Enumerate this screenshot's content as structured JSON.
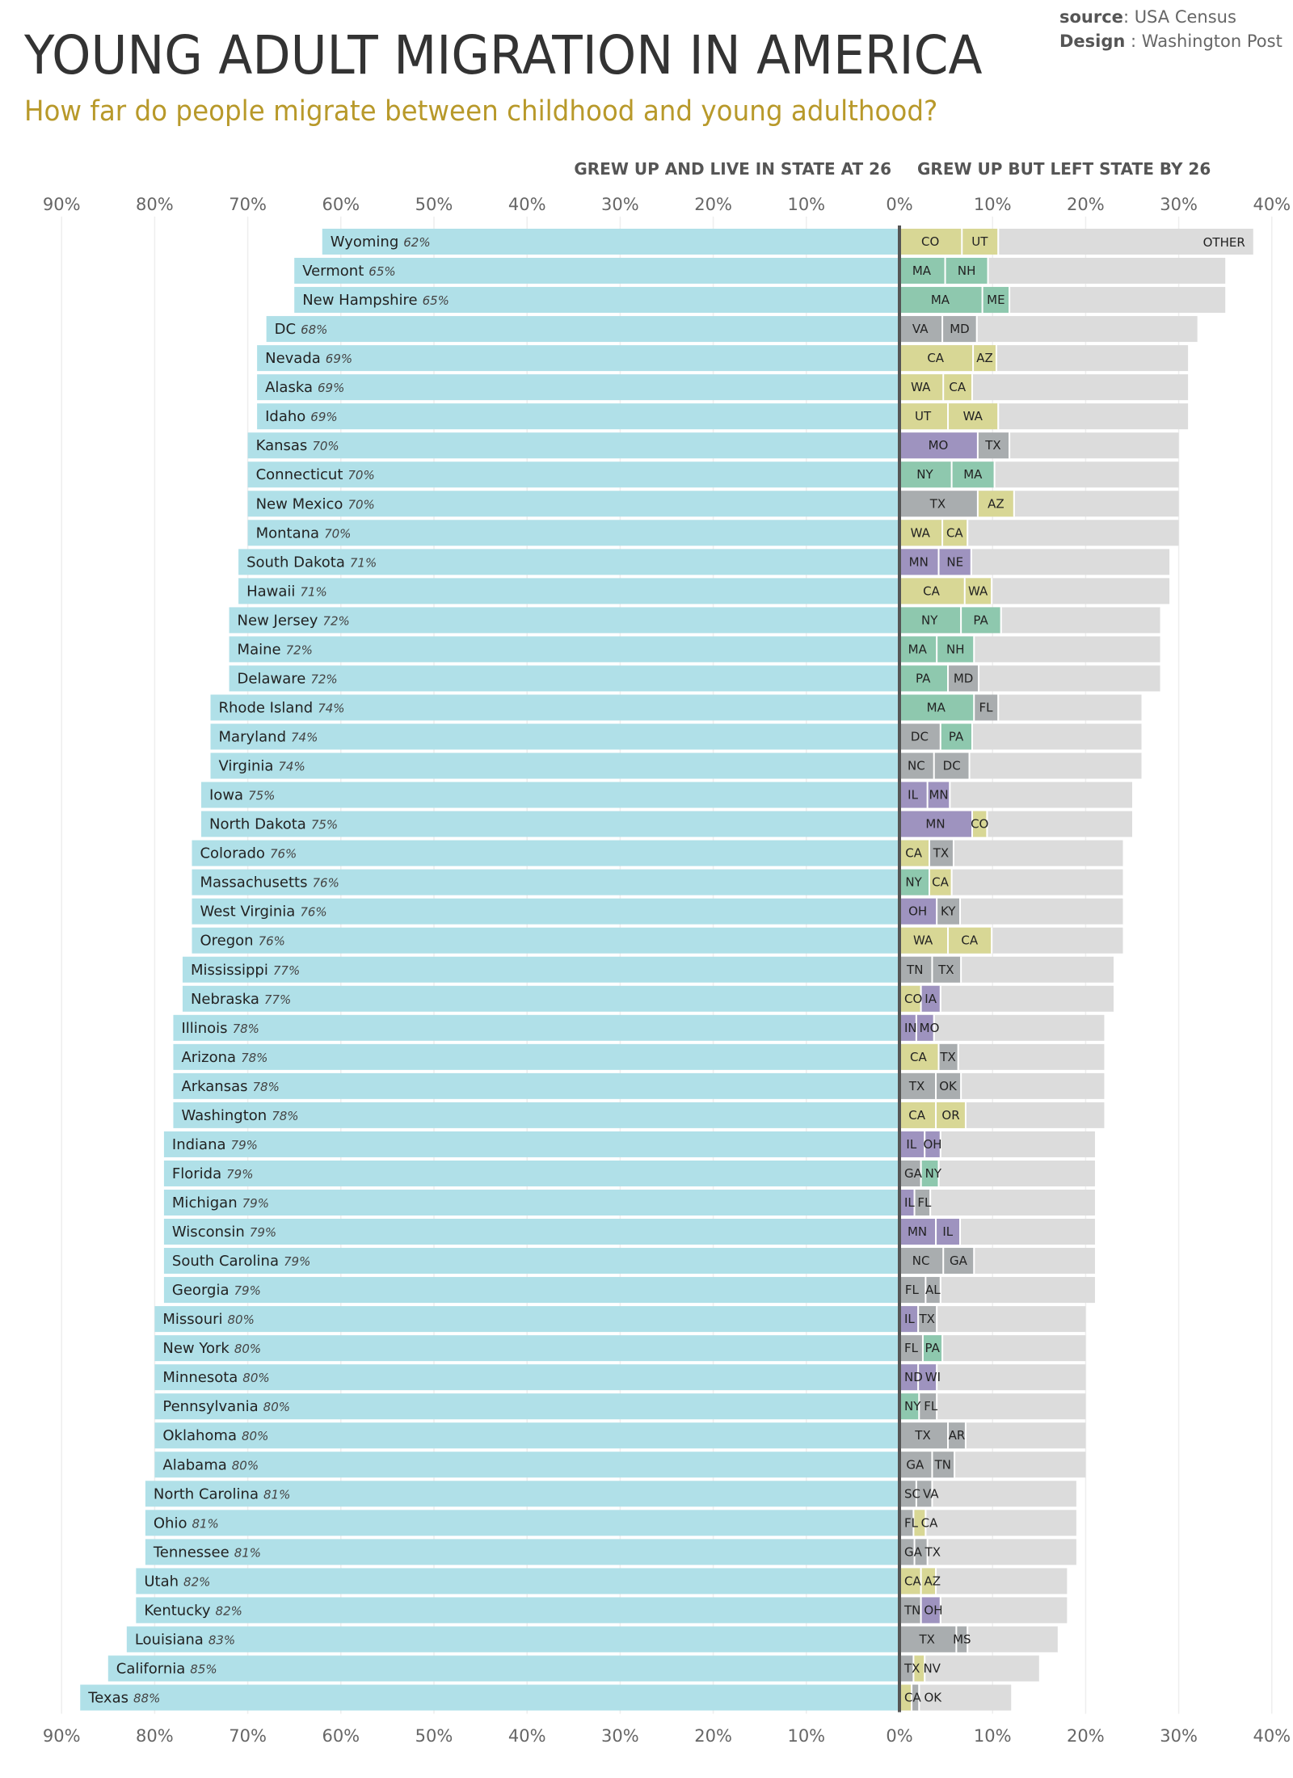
{
  "header": {
    "title": "YOUNG ADULT MIGRATION IN AMERICA",
    "subtitle": "How far do people migrate between childhood and young adulthood?",
    "source_label": "source",
    "source_value": ": USA Census",
    "design_label": "Design",
    "design_value": " : Washington Post"
  },
  "chart_data": {
    "type": "bar",
    "orientation": "horizontal-diverging-stacked",
    "left_header": "GREW UP AND LIVE IN STATE AT 26",
    "right_header": "GREW UP BUT LEFT STATE BY 26",
    "left_ticks": [
      "90%",
      "80%",
      "70%",
      "60%",
      "50%",
      "40%",
      "30%",
      "20%",
      "10%",
      "0%"
    ],
    "right_ticks": [
      "10%",
      "20%",
      "30%",
      "40%"
    ],
    "xlim_left": [
      90,
      0
    ],
    "xlim_right": [
      0,
      40
    ],
    "grid": true,
    "other_label": "OTHER",
    "colors": {
      "stayed": "#b0e0e8",
      "West": "#d8d795",
      "Northeast": "#8ec8ae",
      "Midwest": "#9e93bf",
      "South": "#a9adaf",
      "other": "#dcdcdc",
      "subtitle": "#b8992a"
    },
    "rows": [
      {
        "state": "Wyoming",
        "stayed": 62,
        "dest": [
          [
            "CO",
            6.8,
            "West"
          ],
          [
            "UT",
            3.9,
            "West"
          ]
        ]
      },
      {
        "state": "Vermont",
        "stayed": 65,
        "dest": [
          [
            "MA",
            5.0,
            "Northeast"
          ],
          [
            "NH",
            4.6,
            "Northeast"
          ]
        ]
      },
      {
        "state": "New Hampshire",
        "stayed": 65,
        "dest": [
          [
            "MA",
            9.0,
            "Northeast"
          ],
          [
            "ME",
            2.9,
            "Northeast"
          ]
        ]
      },
      {
        "state": "DC",
        "stayed": 68,
        "dest": [
          [
            "VA",
            4.7,
            "South"
          ],
          [
            "MD",
            3.7,
            "South"
          ]
        ]
      },
      {
        "state": "Nevada",
        "stayed": 69,
        "dest": [
          [
            "CA",
            8.0,
            "West"
          ],
          [
            "AZ",
            2.5,
            "West"
          ]
        ]
      },
      {
        "state": "Alaska",
        "stayed": 69,
        "dest": [
          [
            "WA",
            4.8,
            "West"
          ],
          [
            "CA",
            3.1,
            "West"
          ]
        ]
      },
      {
        "state": "Idaho",
        "stayed": 69,
        "dest": [
          [
            "UT",
            5.3,
            "West"
          ],
          [
            "WA",
            5.4,
            "West"
          ]
        ]
      },
      {
        "state": "Kansas",
        "stayed": 70,
        "dest": [
          [
            "MO",
            8.5,
            "Midwest"
          ],
          [
            "TX",
            3.4,
            "South"
          ]
        ]
      },
      {
        "state": "Connecticut",
        "stayed": 70,
        "dest": [
          [
            "NY",
            5.7,
            "Northeast"
          ],
          [
            "MA",
            4.6,
            "Northeast"
          ]
        ]
      },
      {
        "state": "New Mexico",
        "stayed": 70,
        "dest": [
          [
            "TX",
            8.5,
            "South"
          ],
          [
            "AZ",
            3.9,
            "West"
          ]
        ]
      },
      {
        "state": "Montana",
        "stayed": 70,
        "dest": [
          [
            "WA",
            4.7,
            "West"
          ],
          [
            "CA",
            2.7,
            "West"
          ]
        ]
      },
      {
        "state": "South Dakota",
        "stayed": 71,
        "dest": [
          [
            "MN",
            4.3,
            "Midwest"
          ],
          [
            "NE",
            3.5,
            "Midwest"
          ]
        ]
      },
      {
        "state": "Hawaii",
        "stayed": 71,
        "dest": [
          [
            "CA",
            7.1,
            "West"
          ],
          [
            "WA",
            2.9,
            "West"
          ]
        ]
      },
      {
        "state": "New Jersey",
        "stayed": 72,
        "dest": [
          [
            "NY",
            6.7,
            "Northeast"
          ],
          [
            "PA",
            4.3,
            "Northeast"
          ]
        ]
      },
      {
        "state": "Maine",
        "stayed": 72,
        "dest": [
          [
            "MA",
            4.1,
            "Northeast"
          ],
          [
            "NH",
            4.0,
            "Northeast"
          ]
        ]
      },
      {
        "state": "Delaware",
        "stayed": 72,
        "dest": [
          [
            "PA",
            5.3,
            "Northeast"
          ],
          [
            "MD",
            3.3,
            "South"
          ]
        ]
      },
      {
        "state": "Rhode Island",
        "stayed": 74,
        "dest": [
          [
            "MA",
            8.1,
            "Northeast"
          ],
          [
            "FL",
            2.6,
            "South"
          ]
        ]
      },
      {
        "state": "Maryland",
        "stayed": 74,
        "dest": [
          [
            "DC",
            4.5,
            "South"
          ],
          [
            "PA",
            3.4,
            "Northeast"
          ]
        ]
      },
      {
        "state": "Virginia",
        "stayed": 74,
        "dest": [
          [
            "NC",
            3.8,
            "South"
          ],
          [
            "DC",
            3.8,
            "South"
          ]
        ]
      },
      {
        "state": "Iowa",
        "stayed": 75,
        "dest": [
          [
            "IL",
            3.1,
            "Midwest"
          ],
          [
            "MN",
            2.4,
            "Midwest"
          ]
        ]
      },
      {
        "state": "North Dakota",
        "stayed": 75,
        "dest": [
          [
            "MN",
            7.9,
            "Midwest"
          ],
          [
            "CO",
            1.6,
            "West"
          ]
        ]
      },
      {
        "state": "Colorado",
        "stayed": 76,
        "dest": [
          [
            "CA",
            3.3,
            "West"
          ],
          [
            "TX",
            2.6,
            "South"
          ]
        ]
      },
      {
        "state": "Massachusetts",
        "stayed": 76,
        "dest": [
          [
            "NY",
            3.3,
            "Northeast"
          ],
          [
            "CA",
            2.4,
            "West"
          ]
        ]
      },
      {
        "state": "West Virginia",
        "stayed": 76,
        "dest": [
          [
            "OH",
            4.1,
            "Midwest"
          ],
          [
            "KY",
            2.5,
            "South"
          ]
        ]
      },
      {
        "state": "Oregon",
        "stayed": 76,
        "dest": [
          [
            "WA",
            5.3,
            "West"
          ],
          [
            "CA",
            4.7,
            "West"
          ]
        ]
      },
      {
        "state": "Mississippi",
        "stayed": 77,
        "dest": [
          [
            "TN",
            3.6,
            "South"
          ],
          [
            "TX",
            3.1,
            "South"
          ]
        ]
      },
      {
        "state": "Nebraska",
        "stayed": 77,
        "dest": [
          [
            "CO",
            2.4,
            "West"
          ],
          [
            "IA",
            2.1,
            "Midwest"
          ]
        ]
      },
      {
        "state": "Illinois",
        "stayed": 78,
        "dest": [
          [
            "IN",
            1.9,
            "Midwest"
          ],
          [
            "MO",
            1.9,
            "Midwest"
          ]
        ]
      },
      {
        "state": "Arizona",
        "stayed": 78,
        "dest": [
          [
            "CA",
            4.3,
            "West"
          ],
          [
            "TX",
            2.1,
            "South"
          ]
        ]
      },
      {
        "state": "Arkansas",
        "stayed": 78,
        "dest": [
          [
            "TX",
            4.0,
            "South"
          ],
          [
            "OK",
            2.7,
            "South"
          ]
        ]
      },
      {
        "state": "Washington",
        "stayed": 78,
        "dest": [
          [
            "CA",
            4.0,
            "West"
          ],
          [
            "OR",
            3.2,
            "West"
          ]
        ]
      },
      {
        "state": "Indiana",
        "stayed": 79,
        "dest": [
          [
            "IL",
            2.8,
            "Midwest"
          ],
          [
            "OH",
            1.7,
            "Midwest"
          ]
        ]
      },
      {
        "state": "Florida",
        "stayed": 79,
        "dest": [
          [
            "GA",
            2.4,
            "South"
          ],
          [
            "NY",
            1.9,
            "Northeast"
          ]
        ]
      },
      {
        "state": "Michigan",
        "stayed": 79,
        "dest": [
          [
            "IL",
            1.7,
            "Midwest"
          ],
          [
            "FL",
            1.7,
            "South"
          ]
        ]
      },
      {
        "state": "Wisconsin",
        "stayed": 79,
        "dest": [
          [
            "MN",
            4.0,
            "Midwest"
          ],
          [
            "IL",
            2.6,
            "Midwest"
          ]
        ]
      },
      {
        "state": "South Carolina",
        "stayed": 79,
        "dest": [
          [
            "NC",
            4.8,
            "South"
          ],
          [
            "GA",
            3.3,
            "South"
          ]
        ]
      },
      {
        "state": "Georgia",
        "stayed": 79,
        "dest": [
          [
            "FL",
            2.9,
            "South"
          ],
          [
            "AL",
            1.6,
            "South"
          ]
        ]
      },
      {
        "state": "Missouri",
        "stayed": 80,
        "dest": [
          [
            "IL",
            2.1,
            "Midwest"
          ],
          [
            "TX",
            2.0,
            "South"
          ]
        ]
      },
      {
        "state": "New York",
        "stayed": 80,
        "dest": [
          [
            "FL",
            2.6,
            "South"
          ],
          [
            "PA",
            2.1,
            "Northeast"
          ]
        ]
      },
      {
        "state": "Minnesota",
        "stayed": 80,
        "dest": [
          [
            "ND",
            2.1,
            "Midwest"
          ],
          [
            "WI",
            2.0,
            "Midwest"
          ]
        ]
      },
      {
        "state": "Pennsylvania",
        "stayed": 80,
        "dest": [
          [
            "NY",
            2.2,
            "Northeast"
          ],
          [
            "FL",
            1.9,
            "South"
          ]
        ]
      },
      {
        "state": "Oklahoma",
        "stayed": 80,
        "dest": [
          [
            "TX",
            5.3,
            "South"
          ],
          [
            "AR",
            1.9,
            "South"
          ]
        ]
      },
      {
        "state": "Alabama",
        "stayed": 80,
        "dest": [
          [
            "GA",
            3.6,
            "South"
          ],
          [
            "TN",
            2.4,
            "South"
          ]
        ]
      },
      {
        "state": "North Carolina",
        "stayed": 81,
        "dest": [
          [
            "SC",
            1.9,
            "South"
          ],
          [
            "VA",
            1.7,
            "South"
          ]
        ]
      },
      {
        "state": "Ohio",
        "stayed": 81,
        "dest": [
          [
            "FL",
            1.6,
            "South"
          ],
          [
            "CA",
            1.3,
            "West"
          ]
        ]
      },
      {
        "state": "Tennessee",
        "stayed": 81,
        "dest": [
          [
            "GA",
            1.7,
            "South"
          ],
          [
            "TX",
            1.4,
            "South"
          ]
        ]
      },
      {
        "state": "Utah",
        "stayed": 82,
        "dest": [
          [
            "CA",
            2.4,
            "West"
          ],
          [
            "AZ",
            1.6,
            "West"
          ]
        ]
      },
      {
        "state": "Kentucky",
        "stayed": 82,
        "dest": [
          [
            "TN",
            2.4,
            "South"
          ],
          [
            "OH",
            2.1,
            "Midwest"
          ]
        ]
      },
      {
        "state": "Louisiana",
        "stayed": 83,
        "dest": [
          [
            "TX",
            6.2,
            "South"
          ],
          [
            "MS",
            1.2,
            "South"
          ]
        ]
      },
      {
        "state": "California",
        "stayed": 85,
        "dest": [
          [
            "TX",
            1.6,
            "South"
          ],
          [
            "NV",
            1.2,
            "West"
          ]
        ]
      },
      {
        "state": "Texas",
        "stayed": 88,
        "dest": [
          [
            "CA",
            1.4,
            "West"
          ],
          [
            "OK",
            0.8,
            "South"
          ]
        ]
      }
    ]
  }
}
